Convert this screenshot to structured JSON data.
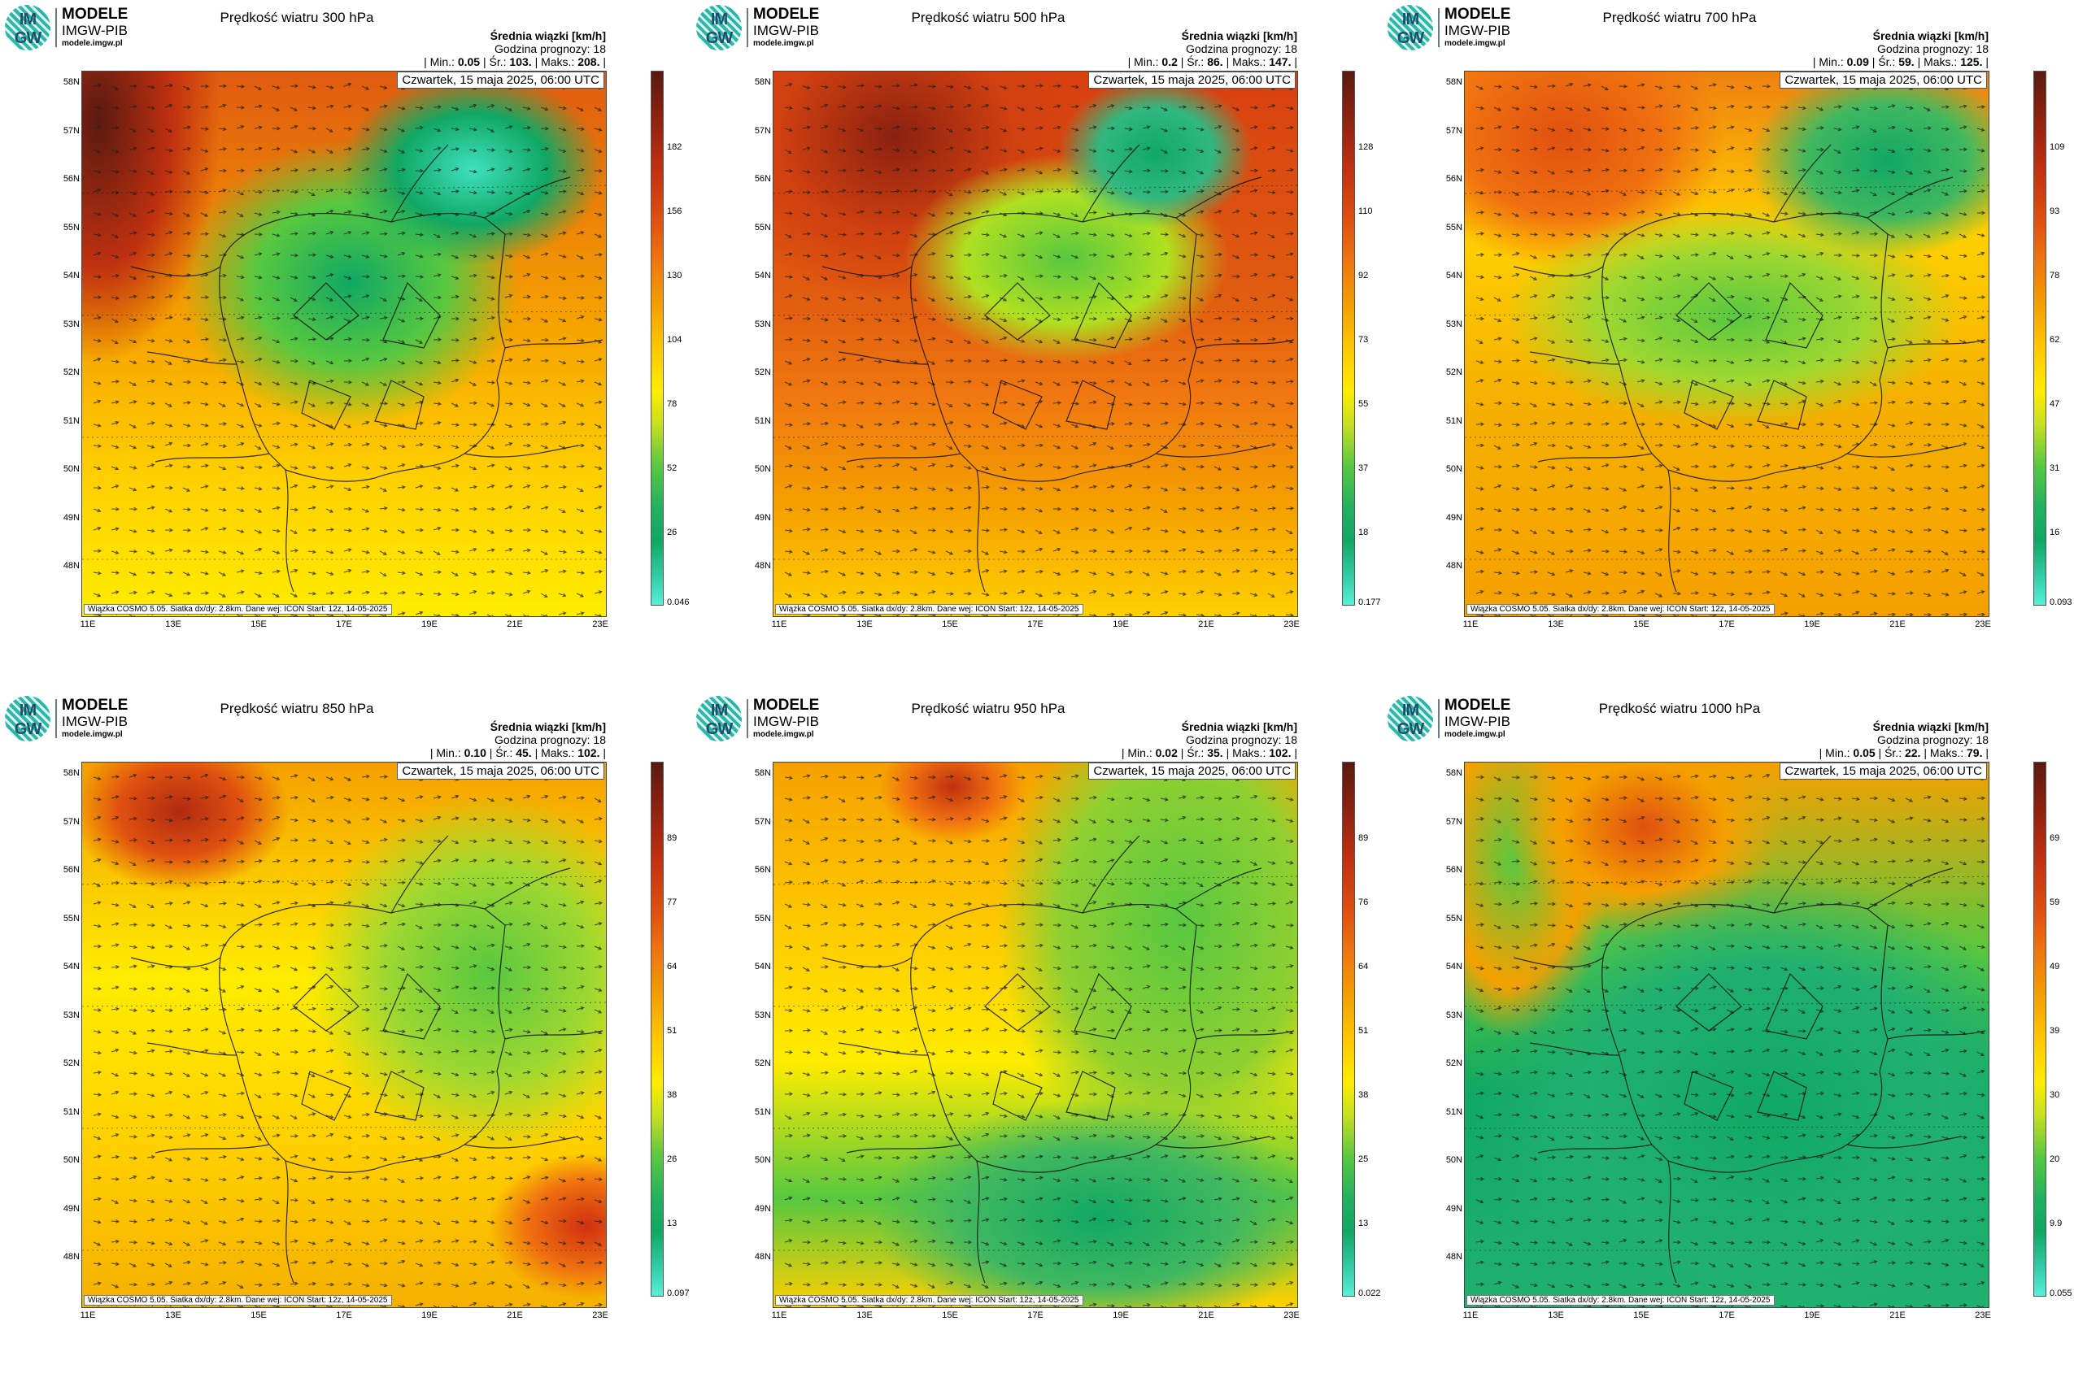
{
  "logo": {
    "line1": "MODELE",
    "line2": "IMGW-PIB",
    "url": "modele.imgw.pl",
    "mark": "IM GW"
  },
  "common": {
    "unit_label": "Średnia wiązki [km/h]",
    "forecast_hour": "Godzina prognozy: 18",
    "date_label": "Czwartek, 15 maja 2025, 06:00 UTC",
    "footer": "Wiązka COSMO 5.05. Siatka dx/dy: 2.8km. Dane wej: ICON Start: 12z, 14-05-2025",
    "min_label": "| Min.:",
    "avg_label": "| Śr.:",
    "max_label": "| Maks.:",
    "lat_labels": [
      "58N",
      "57N",
      "56N",
      "55N",
      "54N",
      "53N",
      "52N",
      "51N",
      "50N",
      "49N",
      "48N"
    ],
    "lon_labels": [
      "11E",
      "13E",
      "15E",
      "17E",
      "19E",
      "21E",
      "23E"
    ]
  },
  "colors": {
    "cyan": "#55f0d8",
    "green": "#10a864",
    "lightgreen": "#58c840",
    "yellow": "#ffec00",
    "orange": "#f5a000",
    "red": "#e04010",
    "darkred": "#5a1a10"
  },
  "panels": [
    {
      "title": "Prędkość wiatru 300 hPa",
      "min": "0.05",
      "avg": "103.",
      "max": "208.",
      "scale": [
        "182",
        "156",
        "130",
        "104",
        "78",
        "52",
        "26"
      ],
      "scale_min": "0.046"
    },
    {
      "title": "Prędkość wiatru 500 hPa",
      "min": "0.2",
      "avg": "86.",
      "max": "147.",
      "scale": [
        "128",
        "110",
        "92",
        "73",
        "55",
        "37",
        "18"
      ],
      "scale_min": "0.177"
    },
    {
      "title": "Prędkość wiatru 700 hPa",
      "min": "0.09",
      "avg": "59.",
      "max": "125.",
      "scale": [
        "109",
        "93",
        "78",
        "62",
        "47",
        "31",
        "16"
      ],
      "scale_min": "0.093"
    },
    {
      "title": "Prędkość wiatru 850 hPa",
      "min": "0.10",
      "avg": "45.",
      "max": "102.",
      "scale": [
        "89",
        "77",
        "64",
        "51",
        "38",
        "26",
        "13"
      ],
      "scale_min": "0.097"
    },
    {
      "title": "Prędkość wiatru 950 hPa",
      "min": "0.02",
      "avg": "35.",
      "max": "102.",
      "scale": [
        "89",
        "76",
        "64",
        "51",
        "38",
        "25",
        "13"
      ],
      "scale_min": "0.022"
    },
    {
      "title": "Prędkość wiatru 1000 hPa",
      "min": "0.05",
      "avg": "22.",
      "max": "79.",
      "scale": [
        "69",
        "59",
        "49",
        "39",
        "30",
        "20",
        "9.9"
      ],
      "scale_min": "0.055"
    }
  ]
}
